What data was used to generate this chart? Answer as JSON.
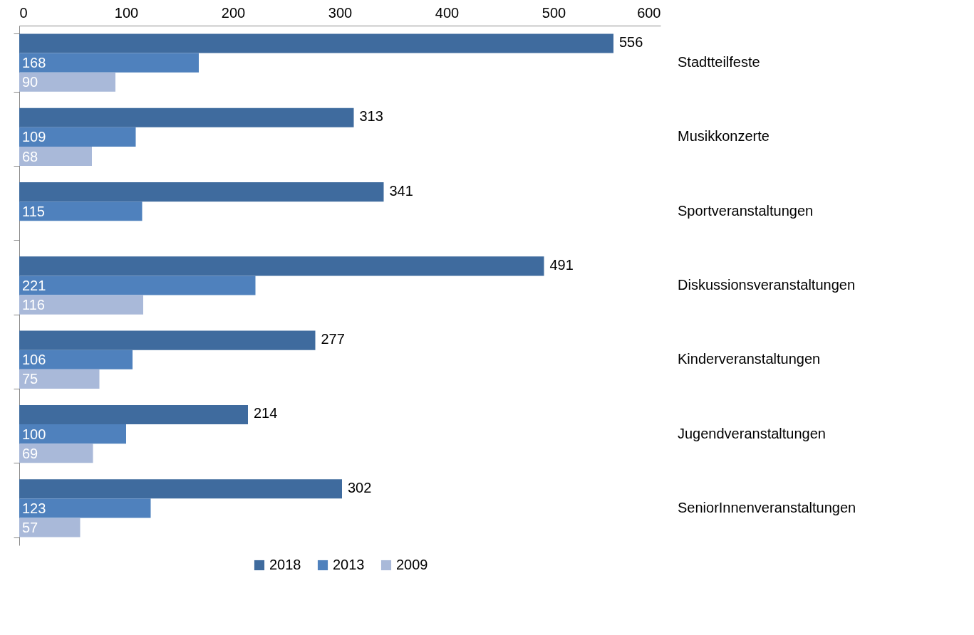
{
  "chart_data": {
    "type": "bar",
    "orientation": "horizontal",
    "categories": [
      "Stadtteilfeste",
      "Musikkonzerte",
      "Sportveranstaltungen",
      "Diskussionsveranstaltungen",
      "Kinderveranstaltungen",
      "Jugendveranstaltungen",
      "SeniorInnenveranstaltungen"
    ],
    "series": [
      {
        "name": "2018",
        "color": "#3f6b9e",
        "values": [
          556,
          313,
          341,
          491,
          277,
          214,
          302
        ]
      },
      {
        "name": "2013",
        "color": "#4f81bd",
        "values": [
          168,
          109,
          115,
          221,
          106,
          100,
          123
        ]
      },
      {
        "name": "2009",
        "color": "#a9b9d9",
        "values": [
          90,
          68,
          null,
          116,
          75,
          69,
          57
        ]
      }
    ],
    "xlim": [
      0,
      600
    ],
    "xticks": [
      0,
      100,
      200,
      300,
      400,
      500,
      600
    ],
    "grid": false,
    "legend": "bottom",
    "data_labels": true
  }
}
